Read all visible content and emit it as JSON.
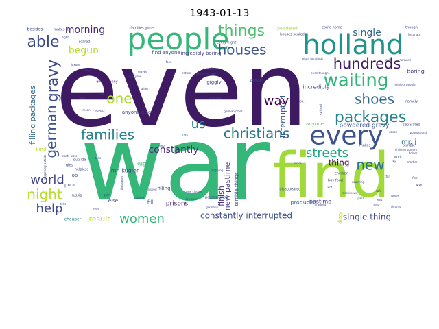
{
  "title": "1943-01-13",
  "words": [
    {
      "text": "even",
      "color": "#3e1a63"
    },
    {
      "text": "war",
      "color": "#35b779"
    },
    {
      "text": "find",
      "color": "#a0da39"
    },
    {
      "text": "people",
      "color": "#35b779"
    },
    {
      "text": "holland",
      "color": "#1f948c"
    },
    {
      "text": "every",
      "color": "#3b528b"
    },
    {
      "text": "things",
      "color": "#4ac16d"
    },
    {
      "text": "houses",
      "color": "#39568c"
    },
    {
      "text": "able",
      "color": "#3e4a89"
    },
    {
      "text": "gravy",
      "color": "#3e4a89"
    },
    {
      "text": "waiting",
      "color": "#31b57b"
    },
    {
      "text": "hundreds",
      "color": "#3e1a63"
    },
    {
      "text": "packages",
      "color": "#25858e"
    },
    {
      "text": "shoes",
      "color": "#31688e"
    },
    {
      "text": "families",
      "color": "#26828e"
    },
    {
      "text": "christians",
      "color": "#2a788e"
    },
    {
      "text": "one",
      "color": "#addc30"
    },
    {
      "text": "us",
      "color": "#26828e"
    },
    {
      "text": "way",
      "color": "#440154"
    },
    {
      "text": "streets",
      "color": "#22a884"
    },
    {
      "text": "new",
      "color": "#2c718e"
    },
    {
      "text": "german",
      "color": "#3b528b"
    },
    {
      "text": "world",
      "color": "#414487"
    },
    {
      "text": "night",
      "color": "#b5de2b"
    },
    {
      "text": "help",
      "color": "#3e4a89"
    },
    {
      "text": "women",
      "color": "#35b779"
    },
    {
      "text": "morning",
      "color": "#482878"
    },
    {
      "text": "begun",
      "color": "#b5de2b"
    },
    {
      "text": "single",
      "color": "#31688e"
    },
    {
      "text": "constantly",
      "color": "#482878"
    },
    {
      "text": "constantly interrupted",
      "color": "#3e4a89"
    },
    {
      "text": "single thing",
      "color": "#3e4a89"
    },
    {
      "text": "filling packages",
      "color": "#31688e"
    },
    {
      "text": "interrupted",
      "color": "#39568c"
    },
    {
      "text": "new pastime",
      "color": "#433e85"
    },
    {
      "text": "finish",
      "color": "#46327e"
    },
    {
      "text": "thing",
      "color": "#440154"
    },
    {
      "text": "result",
      "color": "#bddf26"
    },
    {
      "text": "powdered gravy",
      "color": "#3b528b"
    },
    {
      "text": "terrible things",
      "color": "#3e4a89"
    },
    {
      "text": "mr. j",
      "color": "#2a788e"
    },
    {
      "text": "incredibly",
      "color": "#3e4a89"
    },
    {
      "text": "kugler",
      "color": "#35b779"
    },
    {
      "text": "mr. kugler",
      "color": "#3e4a89"
    },
    {
      "text": "prisons",
      "color": "#481a6c"
    },
    {
      "text": "anyone else",
      "color": "#3e4a89"
    },
    {
      "text": "anyone",
      "color": "#6ece58"
    },
    {
      "text": "boring",
      "color": "#46327e"
    },
    {
      "text": "pastime",
      "color": "#46327e"
    },
    {
      "text": "products",
      "color": "#2e6e8e"
    },
    {
      "text": "fill",
      "color": "#3e4a89"
    },
    {
      "text": "else",
      "color": "#3e4a89"
    },
    {
      "text": "find anyone",
      "color": "#3e4a89"
    },
    {
      "text": "incredibly boring",
      "color": "#433e85"
    },
    {
      "text": "giggly",
      "color": "#3e4a89"
    },
    {
      "text": "filling",
      "color": "#3e4a89"
    },
    {
      "text": "dizzy",
      "color": "#bddf26"
    },
    {
      "text": "job",
      "color": "#3e4a89"
    },
    {
      "text": "poor",
      "color": "#3e4a89"
    },
    {
      "text": "cheaper",
      "color": "#2a788e"
    },
    {
      "text": "kind",
      "color": "#b5de2b"
    },
    {
      "text": "every penny",
      "color": "#481a6c"
    },
    {
      "text": "besides",
      "color": "#3e4a89"
    },
    {
      "text": "makes us",
      "color": "#3e4a89"
    },
    {
      "text": "families gone",
      "color": "#3e4a89"
    },
    {
      "text": "powdered",
      "color": "#a0da39"
    },
    {
      "text": "houses sealed",
      "color": "#3e4a89"
    },
    {
      "text": "come home",
      "color": "#3e4a89"
    },
    {
      "text": "though",
      "color": "#3e4a89"
    },
    {
      "text": "outside",
      "color": "#3e4a89"
    },
    {
      "text": "scared",
      "color": "#3e4a89"
    },
    {
      "text": "every night",
      "color": "#3e4a89"
    },
    {
      "text": "german soil",
      "color": "#3e4a89"
    },
    {
      "text": "helpless",
      "color": "#3e4a89"
    },
    {
      "text": "makes",
      "color": "#3e4a89"
    },
    {
      "text": "terrible",
      "color": "#3e4a89"
    },
    {
      "text": "separated",
      "color": "#3e4a89"
    },
    {
      "text": "work",
      "color": "#3e4a89"
    },
    {
      "text": "disappeared",
      "color": "#3e4a89"
    },
    {
      "text": "russia",
      "color": "#3e4a89"
    },
    {
      "text": "gies",
      "color": "#3e4a89"
    },
    {
      "text": "buy food",
      "color": "#3e4a89"
    },
    {
      "text": "possessions",
      "color": "#3e4a89"
    },
    {
      "text": "parents",
      "color": "#3e4a89"
    },
    {
      "text": "namely",
      "color": "#3e4a89"
    },
    {
      "text": "school",
      "color": "#3e4a89"
    },
    {
      "text": "children",
      "color": "#3e4a89"
    },
    {
      "text": "co.",
      "color": "#3e4a89"
    },
    {
      "text": "even though",
      "color": "#3e4a89"
    },
    {
      "text": "happening outside",
      "color": "#3e4a89"
    },
    {
      "text": "germany",
      "color": "#3e4a89"
    },
    {
      "text": "shopping",
      "color": "#3e4a89"
    },
    {
      "text": "quiet",
      "color": "#3e4a89"
    },
    {
      "text": "robbed",
      "color": "#3e4a89"
    },
    {
      "text": "thousands",
      "color": "#3e4a89"
    },
    {
      "text": "little cash",
      "color": "#3e4a89"
    },
    {
      "text": "allies",
      "color": "#3e4a89"
    },
    {
      "text": "everyone",
      "color": "#3e4a89"
    },
    {
      "text": "return",
      "color": "#3e4a89"
    },
    {
      "text": "sight",
      "color": "#3e4a89"
    },
    {
      "text": "take",
      "color": "#3e4a89"
    },
    {
      "text": "africa",
      "color": "#3e4a89"
    },
    {
      "text": "safe",
      "color": "#3e4a89"
    },
    {
      "text": "bolder",
      "color": "#3e4a89"
    },
    {
      "text": "dragged",
      "color": "#3e4a89"
    },
    {
      "text": "sealed",
      "color": "#3e4a89"
    },
    {
      "text": "else knows",
      "color": "#3e4a89"
    },
    {
      "text": "german cities",
      "color": "#3e4a89"
    },
    {
      "text": "conflicts",
      "color": "#3e4a89"
    },
    {
      "text": "helpless people",
      "color": "#3e4a89"
    },
    {
      "text": "new clothes",
      "color": "#3e4a89"
    },
    {
      "text": "torn apart",
      "color": "#3e4a89"
    },
    {
      "text": "keep",
      "color": "#3e4a89"
    },
    {
      "text": "cold",
      "color": "#3e4a89"
    },
    {
      "text": "hour",
      "color": "#3e4a89"
    },
    {
      "text": "maybe",
      "color": "#3e4a89"
    },
    {
      "text": "doesn",
      "color": "#3e4a89"
    },
    {
      "text": "forward",
      "color": "#3e4a89"
    },
    {
      "text": "sent",
      "color": "#3e4a89"
    },
    {
      "text": "bodies",
      "color": "#3e4a89"
    },
    {
      "text": "children scream",
      "color": "#3e4a89"
    },
    {
      "text": "mean",
      "color": "#3e4a89"
    },
    {
      "text": "food",
      "color": "#3e4a89"
    },
    {
      "text": "fortunate",
      "color": "#3e4a89"
    },
    {
      "text": "bad",
      "color": "#3e4a89"
    },
    {
      "text": "luxury",
      "color": "#3e4a89"
    },
    {
      "text": "buy",
      "color": "#3e4a89"
    },
    {
      "text": "care",
      "color": "#3e4a89"
    },
    {
      "text": "rate",
      "color": "#3e4a89"
    },
    {
      "text": "thin",
      "color": "#3e4a89"
    },
    {
      "text": "homes",
      "color": "#3e4a89"
    },
    {
      "text": "victims",
      "color": "#3e4a89"
    },
    {
      "text": "mother",
      "color": "#3e4a89"
    },
    {
      "text": "boat",
      "color": "#3e4a89"
    },
    {
      "text": "wait",
      "color": "#3e4a89"
    },
    {
      "text": "cowering",
      "color": "#3e4a89"
    },
    {
      "text": "pass",
      "color": "#3e4a89"
    },
    {
      "text": "sky",
      "color": "#3e4a89"
    },
    {
      "text": "pound",
      "color": "#3e4a89"
    },
    {
      "text": "sound",
      "color": "#3e4a89"
    },
    {
      "text": "flee",
      "color": "#3e4a89"
    },
    {
      "text": "give",
      "color": "#3e4a89"
    },
    {
      "text": "eight hundreds",
      "color": "#3e4a89"
    },
    {
      "text": "tells",
      "color": "#3e4a89"
    },
    {
      "text": "coats",
      "color": "#3e4a89"
    },
    {
      "text": "cars",
      "color": "#3e4a89"
    }
  ]
}
